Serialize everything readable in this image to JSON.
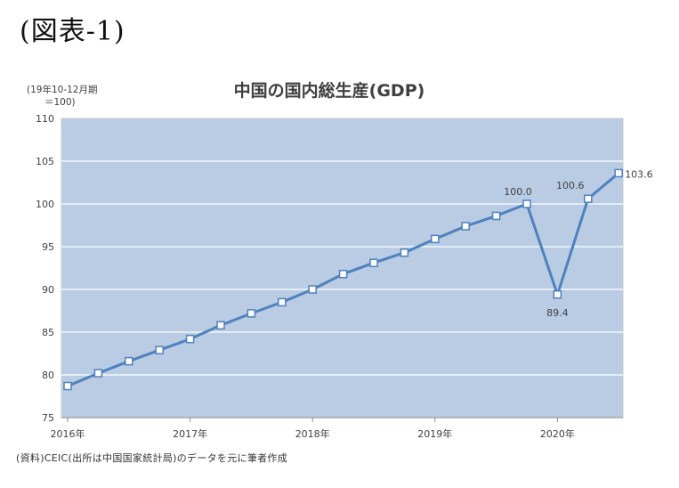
{
  "figure": {
    "label": "(図表-1)",
    "source": "(資料)CEIC(出所は中国国家統計局)のデータを元に筆者作成"
  },
  "chart_data": {
    "type": "line",
    "title": "中国の国内総生産(GDP)",
    "unit_note_line1": "(19年10-12月期",
    "unit_note_line2": "＝100)",
    "xlabel": "",
    "ylabel": "",
    "ylim": [
      75,
      110
    ],
    "y_ticks": [
      75,
      80,
      85,
      90,
      95,
      100,
      105,
      110
    ],
    "x_tick_labels": [
      "2016年",
      "2017年",
      "2018年",
      "2019年",
      "2020年"
    ],
    "grid": true,
    "colors": {
      "plot_bg": "#b9cce4",
      "line": "#4f81bd",
      "marker_fill": "#ffffff",
      "marker_stroke": "#4f81bd",
      "gridline": "#ffffff"
    },
    "x": [
      "2016Q1",
      "2016Q2",
      "2016Q3",
      "2016Q4",
      "2017Q1",
      "2017Q2",
      "2017Q3",
      "2017Q4",
      "2018Q1",
      "2018Q2",
      "2018Q3",
      "2018Q4",
      "2019Q1",
      "2019Q2",
      "2019Q3",
      "2019Q4",
      "2020Q1",
      "2020Q2",
      "2020Q3"
    ],
    "values": [
      78.7,
      80.2,
      81.6,
      82.9,
      84.2,
      85.8,
      87.2,
      88.5,
      90.0,
      91.8,
      93.1,
      94.3,
      95.9,
      97.4,
      98.6,
      100.0,
      89.4,
      100.6,
      103.6
    ],
    "data_labels": [
      {
        "index": 15,
        "text": "100.0"
      },
      {
        "index": 16,
        "text": "89.4"
      },
      {
        "index": 17,
        "text": "100.6"
      },
      {
        "index": 18,
        "text": "103.6"
      }
    ]
  }
}
